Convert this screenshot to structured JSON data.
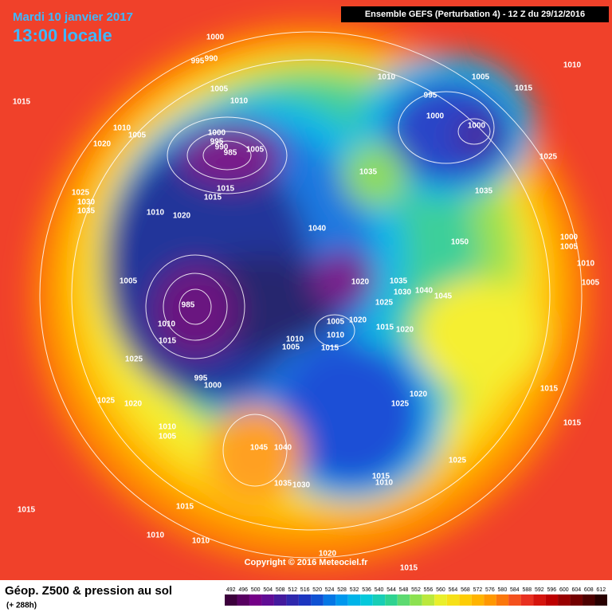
{
  "header": {
    "date": "Mardi 10 janvier 2017",
    "time": "13:00 locale",
    "run": "Ensemble GEFS  (Perturbation 4)  -  12 Z du 29/12/2016"
  },
  "footer": {
    "title": "Géop. Z500 & pression au sol",
    "lead": "(+ 288h)",
    "copyright": "Copyright © 2016 Meteociel.fr"
  },
  "scale": [
    492,
    496,
    500,
    504,
    508,
    512,
    516,
    520,
    524,
    528,
    532,
    536,
    540,
    544,
    548,
    552,
    556,
    560,
    564,
    568,
    572,
    576,
    580,
    584,
    588,
    592,
    596,
    600,
    604,
    608,
    612
  ],
  "isobar_labels": [
    1000,
    995,
    990,
    1005,
    1010,
    1015,
    1010,
    1005,
    1020,
    1000,
    995,
    990,
    985,
    1005,
    1015,
    1015,
    1025,
    1030,
    1035,
    1010,
    1020,
    1040,
    1035,
    1010,
    1005,
    1015,
    1010,
    995,
    1000,
    1000,
    1025,
    1035,
    1050,
    1000,
    1005,
    1010,
    1005,
    1005,
    985,
    1020,
    1035,
    1030,
    1040,
    1045,
    1025,
    1010,
    1015,
    1005,
    1020,
    1010,
    1015,
    1020,
    1010,
    1005,
    1015,
    1025,
    1015,
    1020,
    1025,
    1025,
    1020,
    1010,
    1005,
    1045,
    1040,
    1025,
    1015,
    1015,
    1015,
    1035,
    1030,
    1015,
    1010,
    1010,
    1010,
    1020,
    1015,
    1000,
    995
  ]
}
